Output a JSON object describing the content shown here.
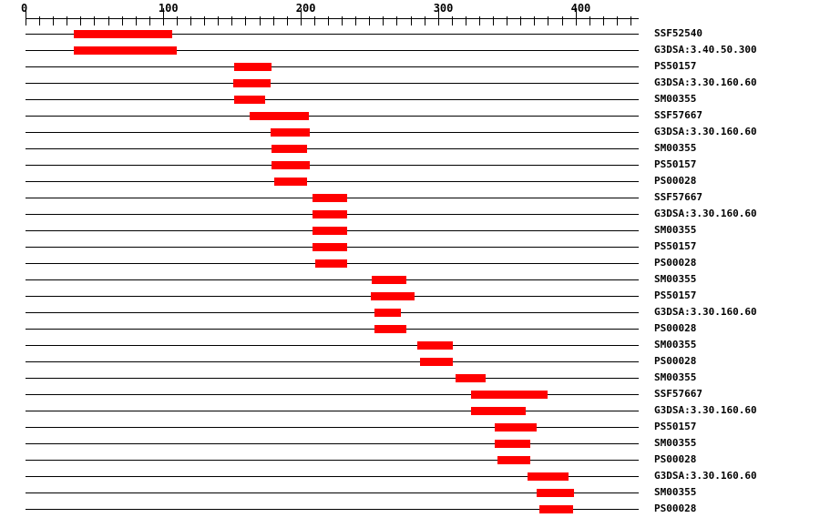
{
  "colors": {
    "background": "#ffffff",
    "bar": "#ff0000",
    "axis": "#000000",
    "text": "#000000"
  },
  "chart_data": {
    "type": "bar",
    "subtype": "protein-signature-match-spans",
    "orientation": "horizontal",
    "title": "",
    "xlabel": "",
    "ylabel": "",
    "xlim": [
      0,
      446
    ],
    "x_major_ticks": [
      0,
      100,
      200,
      300,
      400
    ],
    "x_minor_tick_step": 10,
    "x_last_minor_tick": 440,
    "grid": false,
    "legend": "none",
    "bar_color": "#ff0000",
    "rows": [
      {
        "label": "SSF52540",
        "start": 35,
        "end": 107
      },
      {
        "label": "G3DSA:3.40.50.300",
        "start": 35,
        "end": 110
      },
      {
        "label": "PS50157",
        "start": 152,
        "end": 179
      },
      {
        "label": "G3DSA:3.30.160.60",
        "start": 151,
        "end": 178
      },
      {
        "label": "SM00355",
        "start": 152,
        "end": 174
      },
      {
        "label": "SSF57667",
        "start": 163,
        "end": 206
      },
      {
        "label": "G3DSA:3.30.160.60",
        "start": 178,
        "end": 207
      },
      {
        "label": "SM00355",
        "start": 179,
        "end": 205
      },
      {
        "label": "PS50157",
        "start": 179,
        "end": 207
      },
      {
        "label": "PS00028",
        "start": 181,
        "end": 205
      },
      {
        "label": "SSF57667",
        "start": 209,
        "end": 234
      },
      {
        "label": "G3DSA:3.30.160.60",
        "start": 209,
        "end": 234
      },
      {
        "label": "SM00355",
        "start": 209,
        "end": 234
      },
      {
        "label": "PS50157",
        "start": 209,
        "end": 234
      },
      {
        "label": "PS00028",
        "start": 211,
        "end": 234
      },
      {
        "label": "SM00355",
        "start": 252,
        "end": 277
      },
      {
        "label": "PS50157",
        "start": 251,
        "end": 283
      },
      {
        "label": "G3DSA:3.30.160.60",
        "start": 254,
        "end": 273
      },
      {
        "label": "PS00028",
        "start": 254,
        "end": 277
      },
      {
        "label": "SM00355",
        "start": 285,
        "end": 311
      },
      {
        "label": "PS00028",
        "start": 287,
        "end": 311
      },
      {
        "label": "SM00355",
        "start": 313,
        "end": 335
      },
      {
        "label": "SSF57667",
        "start": 324,
        "end": 380
      },
      {
        "label": "G3DSA:3.30.160.60",
        "start": 324,
        "end": 364
      },
      {
        "label": "PS50157",
        "start": 341,
        "end": 372
      },
      {
        "label": "SM00355",
        "start": 341,
        "end": 367
      },
      {
        "label": "PS00028",
        "start": 343,
        "end": 367
      },
      {
        "label": "G3DSA:3.30.160.60",
        "start": 365,
        "end": 395
      },
      {
        "label": "SM00355",
        "start": 372,
        "end": 399
      },
      {
        "label": "PS00028",
        "start": 374,
        "end": 398
      }
    ]
  }
}
